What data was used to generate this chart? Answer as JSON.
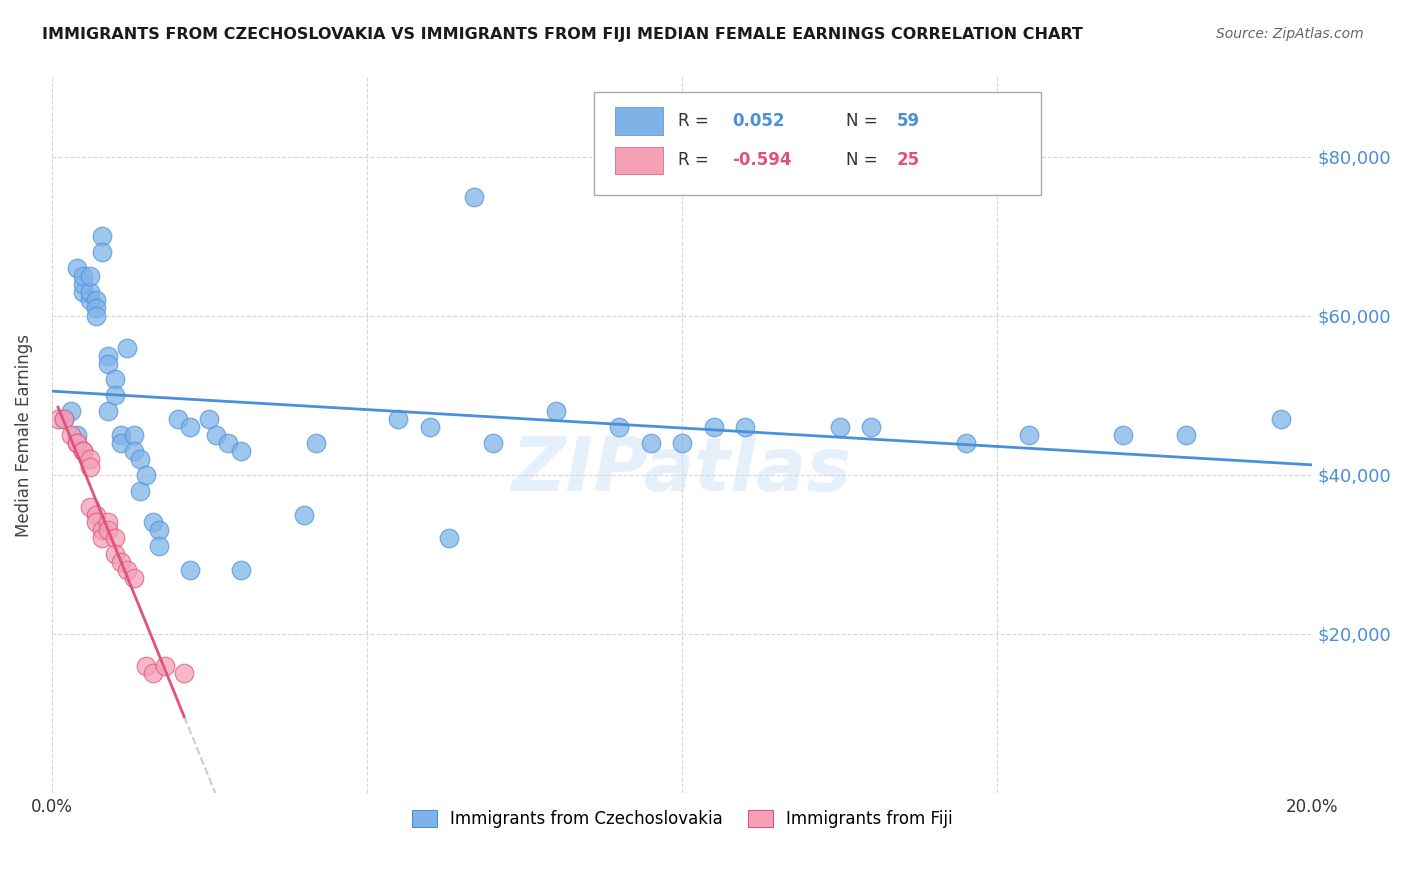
{
  "title": "IMMIGRANTS FROM CZECHOSLOVAKIA VS IMMIGRANTS FROM FIJI MEDIAN FEMALE EARNINGS CORRELATION CHART",
  "source": "Source: ZipAtlas.com",
  "ylabel": "Median Female Earnings",
  "xlim": [
    0.0,
    0.2
  ],
  "ylim": [
    0,
    90000
  ],
  "xtick_positions": [
    0.0,
    0.05,
    0.1,
    0.15,
    0.2
  ],
  "xticklabels": [
    "0.0%",
    "",
    "",
    "",
    "20.0%"
  ],
  "ytick_right_positions": [
    20000,
    40000,
    60000,
    80000
  ],
  "ytick_right_labels": [
    "$20,000",
    "$40,000",
    "$60,000",
    "$80,000"
  ],
  "grid_color": "#cccccc",
  "background_color": "#ffffff",
  "watermark": "ZIPatlas",
  "color_czech": "#7fb3e8",
  "color_fiji": "#f4a0b5",
  "line_color_czech": "#4a90d9",
  "line_color_fiji": "#e05080",
  "line_color_fiji_ext": "#cccccc",
  "czech_x": [
    0.002,
    0.003,
    0.004,
    0.004,
    0.005,
    0.005,
    0.005,
    0.006,
    0.006,
    0.006,
    0.007,
    0.007,
    0.007,
    0.008,
    0.008,
    0.009,
    0.009,
    0.009,
    0.01,
    0.01,
    0.011,
    0.011,
    0.012,
    0.013,
    0.013,
    0.014,
    0.014,
    0.015,
    0.016,
    0.017,
    0.017,
    0.02,
    0.022,
    0.022,
    0.025,
    0.026,
    0.028,
    0.03,
    0.03,
    0.04,
    0.042,
    0.055,
    0.06,
    0.063,
    0.067,
    0.07,
    0.08,
    0.09,
    0.095,
    0.1,
    0.105,
    0.11,
    0.125,
    0.13,
    0.145,
    0.155,
    0.17,
    0.18,
    0.195
  ],
  "czech_y": [
    47000,
    48000,
    45000,
    66000,
    63000,
    64000,
    65000,
    62000,
    63000,
    65000,
    62000,
    61000,
    60000,
    70000,
    68000,
    55000,
    54000,
    48000,
    52000,
    50000,
    45000,
    44000,
    56000,
    45000,
    43000,
    38000,
    42000,
    40000,
    34000,
    33000,
    31000,
    47000,
    46000,
    28000,
    47000,
    45000,
    44000,
    43000,
    28000,
    35000,
    44000,
    47000,
    46000,
    32000,
    75000,
    44000,
    48000,
    46000,
    44000,
    44000,
    46000,
    46000,
    46000,
    46000,
    44000,
    45000,
    45000,
    45000,
    47000
  ],
  "fiji_x": [
    0.001,
    0.002,
    0.003,
    0.004,
    0.004,
    0.005,
    0.005,
    0.006,
    0.006,
    0.006,
    0.007,
    0.007,
    0.008,
    0.008,
    0.009,
    0.009,
    0.01,
    0.01,
    0.011,
    0.012,
    0.013,
    0.015,
    0.016,
    0.018,
    0.021
  ],
  "fiji_y": [
    47000,
    47000,
    45000,
    44000,
    44000,
    43000,
    43000,
    42000,
    41000,
    36000,
    35000,
    34000,
    33000,
    32000,
    34000,
    33000,
    32000,
    30000,
    29000,
    28000,
    27000,
    16000,
    15000,
    16000,
    15000
  ],
  "legend_r1_label": "R = ",
  "legend_r1_val": "0.052",
  "legend_n1_label": "N = ",
  "legend_n1_val": "59",
  "legend_r2_label": "R = ",
  "legend_r2_val": "-0.594",
  "legend_n2_label": "N = ",
  "legend_n2_val": "25",
  "bottom_legend_czech": "Immigrants from Czechoslovakia",
  "bottom_legend_fiji": "Immigrants from Fiji"
}
